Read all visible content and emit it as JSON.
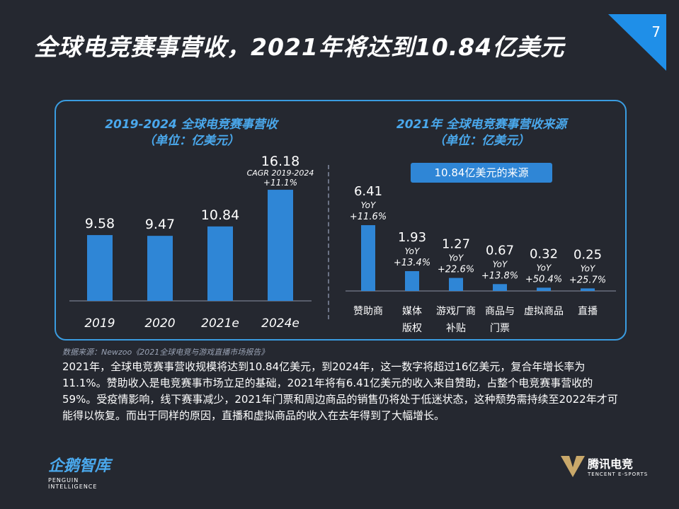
{
  "page": {
    "title": "全球电竞赛事营收，2021年将达到10.84亿美元",
    "page_number": "7"
  },
  "left_panel": {
    "title_line1": "2019-2024 全球电竞赛事营收",
    "title_line2": "（单位：亿美元）",
    "cagr_line1": "CAGR 2019-2024",
    "cagr_line2": "+11.1%"
  },
  "right_panel": {
    "title_line1": "2021年 全球电竞赛事营收来源",
    "title_line2": "（单位：亿美元）",
    "badge": "10.84亿美元的来源",
    "yoy_label": "YoY"
  },
  "chart_data": [
    {
      "type": "bar",
      "title": "2019-2024 全球电竞赛事营收",
      "subtitle": "（单位：亿美元）",
      "categories": [
        "2019",
        "2020",
        "2021e",
        "2024e"
      ],
      "values": [
        9.58,
        9.47,
        10.84,
        16.18
      ],
      "value_labels": [
        "9.58",
        "9.47",
        "10.84",
        "16.18"
      ],
      "annotation": "CAGR 2019-2024 +11.1%",
      "color": "#2f86d6"
    },
    {
      "type": "bar",
      "title": "2021年 全球电竞赛事营收来源",
      "subtitle": "（单位：亿美元）",
      "categories": [
        [
          "赞助商"
        ],
        [
          "媒体",
          "版权"
        ],
        [
          "游戏厂商",
          "补贴"
        ],
        [
          "商品与",
          "门票"
        ],
        [
          "虚拟商品"
        ],
        [
          "直播"
        ]
      ],
      "values": [
        6.41,
        1.93,
        1.27,
        0.67,
        0.32,
        0.25
      ],
      "value_labels": [
        "6.41",
        "1.93",
        "1.27",
        "0.67",
        "0.32",
        "0.25"
      ],
      "yoy": [
        "+11.6%",
        "+13.4%",
        "+22.6%",
        "+13.8%",
        "+50.4%",
        "+25.7%"
      ],
      "color": "#2f86d6"
    }
  ],
  "footer": {
    "source_note": "数据来源：Newzoo《2021全球电竞与游戏直播市场报告》",
    "body_text": "2021年，全球电竞赛事营收规模将达到10.84亿美元，到2024年，这一数字将超过16亿美元，复合年增长率为11.1%。赞助收入是电竞赛事市场立足的基础，2021年将有6.41亿美元的收入来自赞助，占整个电竞赛事营收的59%。受疫情影响，线下赛事减少，2021年门票和周边商品的销售仍将处于低迷状态，这种颓势需持续至2022年才可能得以恢复。而出于同样的原因，直播和虚拟商品的收入在去年得到了大幅增长。",
    "logo_left_main": "企鹅智库",
    "logo_left_sub": "PENGUIN INTELLIGENCE",
    "logo_right_main": "腾讯电竞",
    "logo_right_sub": "TENCENT E-SPORTS"
  },
  "colors": {
    "background": "#252830",
    "accent": "#3a9ce0",
    "bar": "#2f86d6"
  }
}
